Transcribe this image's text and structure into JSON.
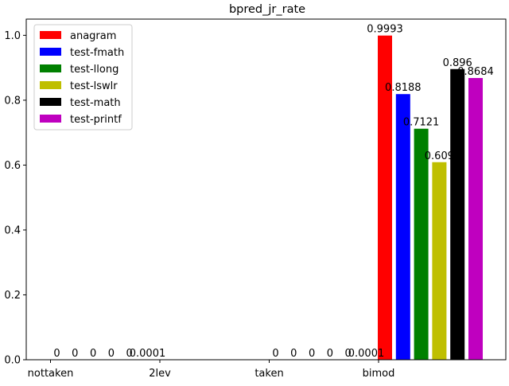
{
  "chart_data": {
    "type": "bar",
    "title": "bpred_jr_rate",
    "xlabel": "",
    "ylabel": "",
    "categories": [
      "nottaken",
      "2lev",
      "taken",
      "bimod"
    ],
    "ylim": [
      0,
      1.05
    ],
    "yticks": [
      0.0,
      0.2,
      0.4,
      0.6,
      0.8,
      1.0
    ],
    "ytick_labels": [
      "0.0",
      "0.2",
      "0.4",
      "0.6",
      "0.8",
      "1.0"
    ],
    "grid": false,
    "legend_position": "top-left",
    "series": [
      {
        "name": "anagram",
        "color": "#ff0000",
        "values": [
          0,
          0,
          0,
          0.9993
        ],
        "labels": [
          "0",
          "",
          "0",
          "0.9993"
        ]
      },
      {
        "name": "test-fmath",
        "color": "#0000ff",
        "values": [
          0,
          0,
          0,
          0.8188
        ],
        "labels": [
          "0",
          "",
          "0",
          "0.8188"
        ]
      },
      {
        "name": "test-llong",
        "color": "#008000",
        "values": [
          0,
          0,
          0,
          0.7121
        ],
        "labels": [
          "0",
          "",
          "0",
          "0.7121"
        ]
      },
      {
        "name": "test-lswlr",
        "color": "#bfbf00",
        "values": [
          0,
          0,
          0,
          0.609
        ],
        "labels": [
          "0",
          "",
          "0",
          "0.609"
        ]
      },
      {
        "name": "test-math",
        "color": "#000000",
        "values": [
          0,
          0,
          0.0001,
          0.896
        ],
        "labels": [
          "0",
          "",
          "0",
          "0.896"
        ]
      },
      {
        "name": "test-printf",
        "color": "#bf00bf",
        "values": [
          0.0001,
          0,
          0.0001,
          0.8684
        ],
        "labels": [
          "0.0001",
          "",
          "0.0001",
          "0.8684"
        ]
      }
    ]
  }
}
